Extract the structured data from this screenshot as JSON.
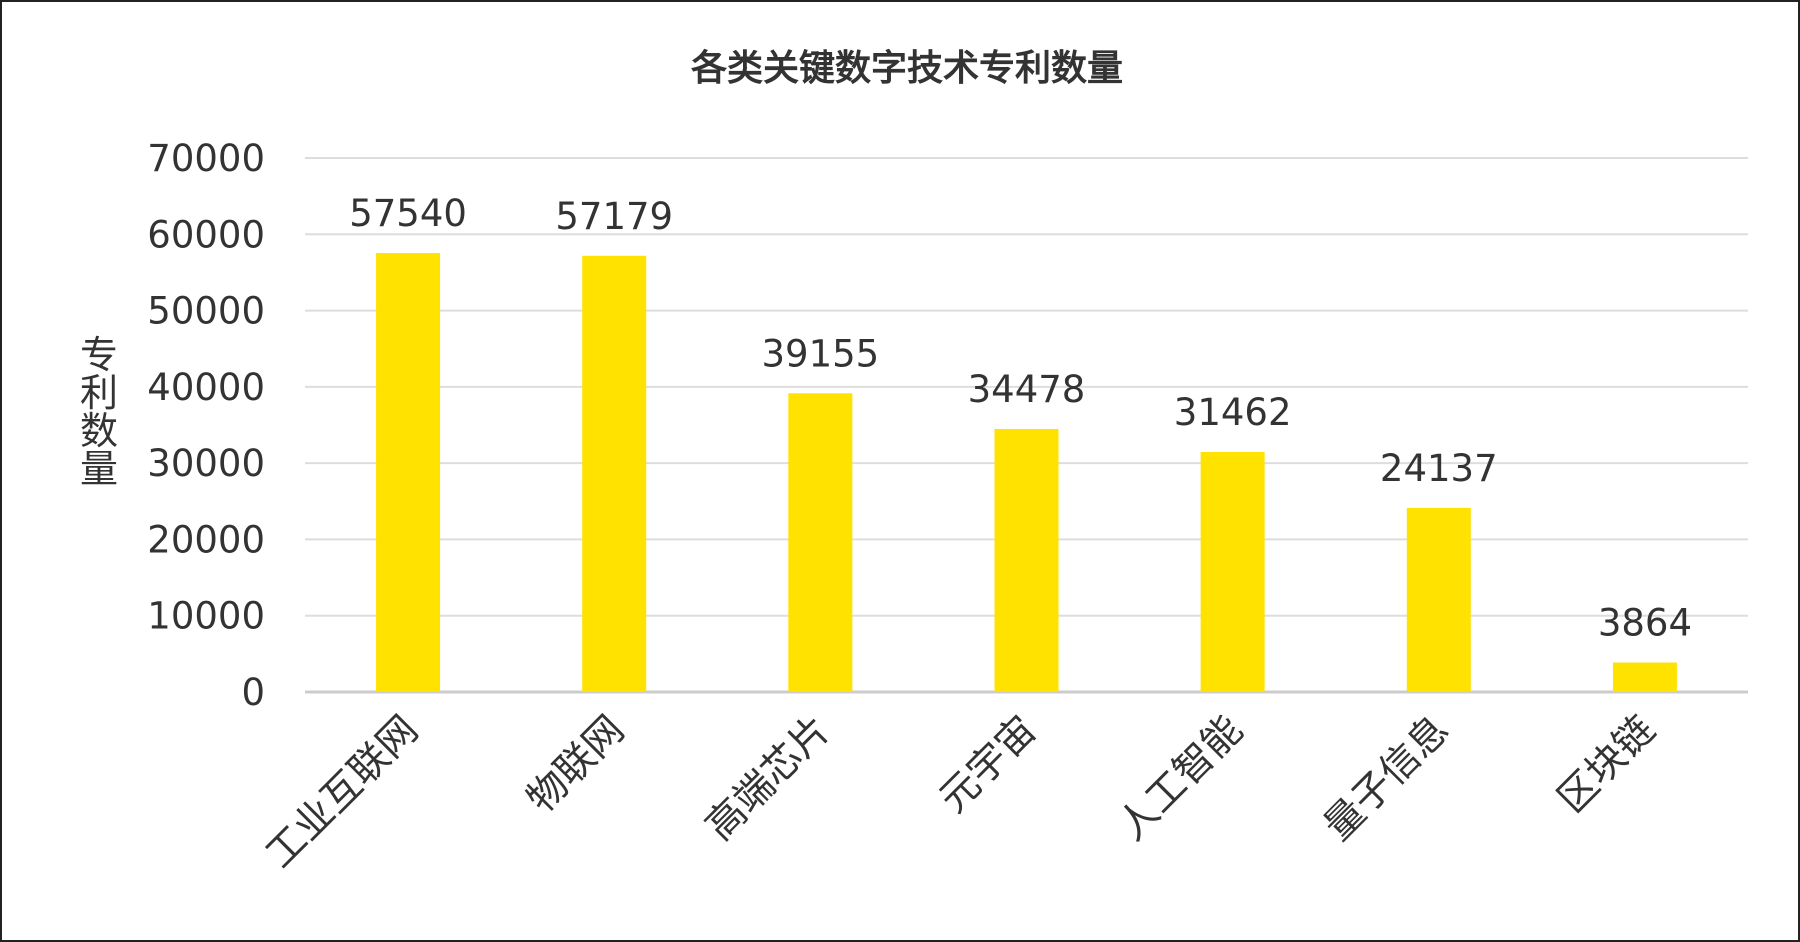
{
  "chart_data": {
    "type": "bar",
    "title": "各类关键数字技术专利数量",
    "xlabel": "",
    "ylabel": "专利数量",
    "categories": [
      "工业互联网",
      "物联网",
      "高端芯片",
      "元宇宙",
      "人工智能",
      "量子信息",
      "区块链"
    ],
    "values": [
      57540,
      57179,
      39155,
      34478,
      31462,
      24137,
      3864
    ],
    "ylim": [
      0,
      70000
    ],
    "yticks": [
      0,
      10000,
      20000,
      30000,
      40000,
      50000,
      60000,
      70000
    ],
    "grid": true,
    "legend": "none",
    "data_labels": true,
    "colors": {
      "bar": "#FFE200",
      "grid": "#DDDDDD",
      "axis": "#CCCCCC",
      "text": "#333333",
      "border": "#222222"
    }
  }
}
